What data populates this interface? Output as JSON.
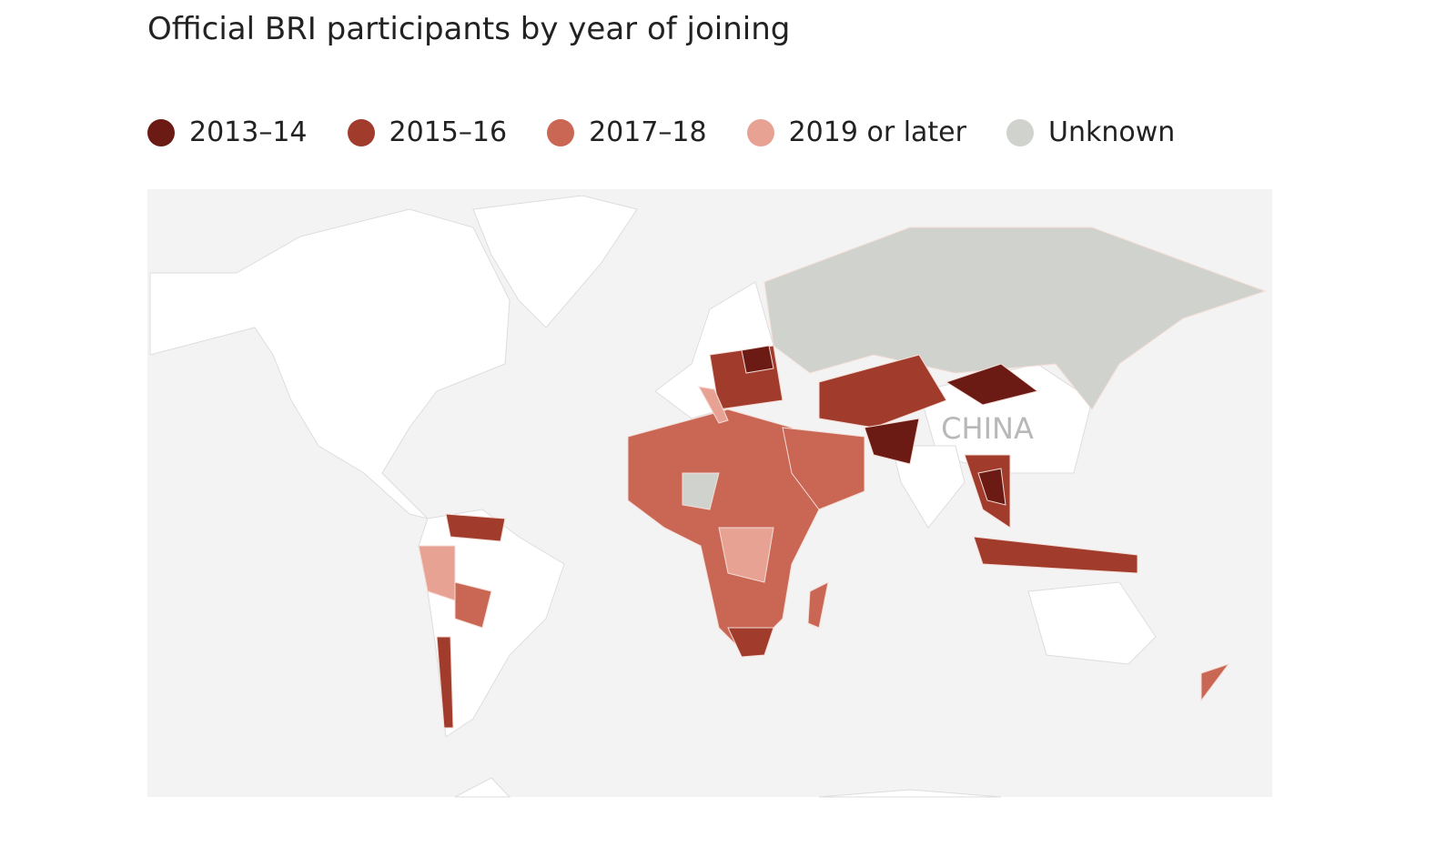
{
  "title": "Official BRI participants by year of joining",
  "legend": [
    {
      "label": "2013–14",
      "color": "#6b1a14"
    },
    {
      "label": "2015–16",
      "color": "#a13b2c"
    },
    {
      "label": "2017–18",
      "color": "#c96654"
    },
    {
      "label": "2019 or later",
      "color": "#e8a293"
    },
    {
      "label": "Unknown",
      "color": "#cfd2cd"
    }
  ],
  "map_labels": [
    "CHINA"
  ]
}
